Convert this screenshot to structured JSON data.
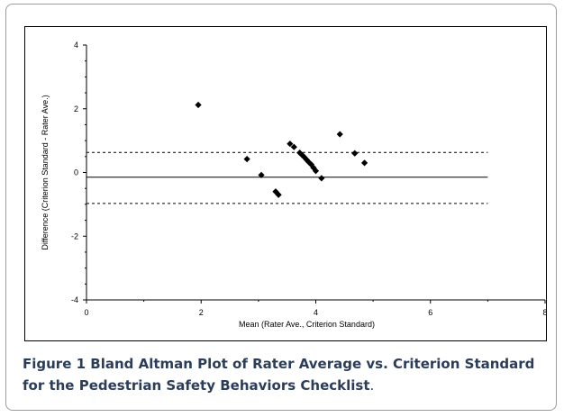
{
  "chart_data": {
    "type": "scatter",
    "xlabel": "Mean (Rater Ave., Criterion Standard)",
    "ylabel": "Difference (Criterion Standard - Rater Ave.)",
    "xlim": [
      0,
      8
    ],
    "ylim": [
      -4,
      4
    ],
    "x_ticks": [
      0,
      2,
      4,
      6,
      8
    ],
    "y_ticks": [
      -4,
      -2,
      0,
      2,
      4
    ],
    "grid": false,
    "points": [
      {
        "x": 1.95,
        "y": 2.12
      },
      {
        "x": 2.8,
        "y": 0.42
      },
      {
        "x": 3.05,
        "y": -0.08
      },
      {
        "x": 3.3,
        "y": -0.6
      },
      {
        "x": 3.35,
        "y": -0.7
      },
      {
        "x": 3.55,
        "y": 0.9
      },
      {
        "x": 3.62,
        "y": 0.8
      },
      {
        "x": 3.72,
        "y": 0.62
      },
      {
        "x": 3.76,
        "y": 0.55
      },
      {
        "x": 3.8,
        "y": 0.48
      },
      {
        "x": 3.84,
        "y": 0.4
      },
      {
        "x": 3.88,
        "y": 0.32
      },
      {
        "x": 3.92,
        "y": 0.25
      },
      {
        "x": 3.96,
        "y": 0.15
      },
      {
        "x": 4.0,
        "y": 0.05
      },
      {
        "x": 4.1,
        "y": -0.18
      },
      {
        "x": 4.42,
        "y": 1.2
      },
      {
        "x": 4.68,
        "y": 0.6
      },
      {
        "x": 4.85,
        "y": 0.3
      }
    ],
    "reference_lines": [
      {
        "name": "mean",
        "y": -0.15,
        "style": "solid",
        "x_from": 0,
        "x_to": 7
      },
      {
        "name": "upper-limit",
        "y": 0.63,
        "style": "dashed",
        "x_from": 0,
        "x_to": 7
      },
      {
        "name": "lower-limit",
        "y": -0.97,
        "style": "dashed",
        "x_from": 0,
        "x_to": 7
      }
    ]
  },
  "caption": {
    "label": "Figure 1",
    "text": " Bland Altman Plot of Rater Average vs. Criterion Standard for the Pedestrian Safety Behaviors Checklist"
  }
}
